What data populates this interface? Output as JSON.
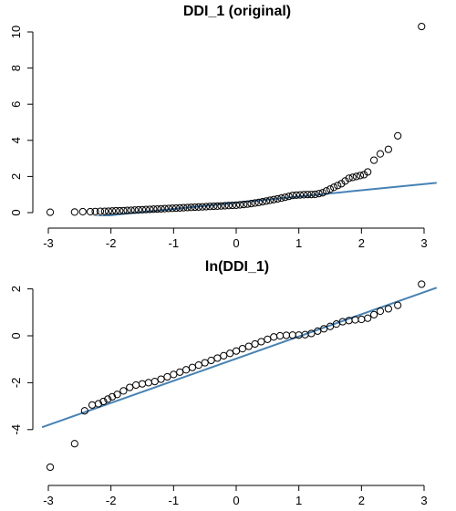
{
  "chart_data": [
    {
      "type": "scatter",
      "title": "DDI_1 (original)",
      "xlabel": "",
      "ylabel": "",
      "xlim": [
        -3.05,
        3.05
      ],
      "ylim": [
        0,
        10.5
      ],
      "x_ticks": [
        -3,
        -2,
        -1,
        0,
        1,
        2,
        3
      ],
      "y_ticks": [
        0,
        2,
        4,
        6,
        8,
        10
      ],
      "reference_line": {
        "x": [
          -2.6,
          3.2
        ],
        "y": [
          -0.35,
          1.65
        ],
        "color": "#4682B4"
      },
      "points": {
        "x": [
          -2.97,
          -2.58,
          -2.45,
          -2.33,
          -2.25,
          -2.17,
          -2.1,
          -2.04,
          -1.98,
          -1.92,
          -1.86,
          -1.8,
          -1.74,
          -1.68,
          -1.62,
          -1.56,
          -1.5,
          -1.44,
          -1.38,
          -1.32,
          -1.26,
          -1.2,
          -1.14,
          -1.08,
          -1.02,
          -0.96,
          -0.9,
          -0.84,
          -0.78,
          -0.72,
          -0.66,
          -0.6,
          -0.54,
          -0.48,
          -0.42,
          -0.36,
          -0.3,
          -0.24,
          -0.18,
          -0.12,
          -0.06,
          0.0,
          0.06,
          0.12,
          0.18,
          0.24,
          0.3,
          0.36,
          0.42,
          0.48,
          0.54,
          0.6,
          0.66,
          0.72,
          0.78,
          0.84,
          0.9,
          0.96,
          1.02,
          1.08,
          1.14,
          1.2,
          1.26,
          1.32,
          1.38,
          1.44,
          1.5,
          1.56,
          1.62,
          1.68,
          1.74,
          1.8,
          1.86,
          1.92,
          1.98,
          2.04,
          2.1,
          2.2,
          2.3,
          2.43,
          2.58,
          2.96
        ],
        "y": [
          0.02,
          0.03,
          0.05,
          0.05,
          0.06,
          0.07,
          0.07,
          0.08,
          0.09,
          0.1,
          0.1,
          0.11,
          0.12,
          0.13,
          0.14,
          0.15,
          0.16,
          0.17,
          0.18,
          0.19,
          0.2,
          0.21,
          0.22,
          0.23,
          0.24,
          0.25,
          0.26,
          0.27,
          0.28,
          0.29,
          0.3,
          0.31,
          0.32,
          0.33,
          0.34,
          0.35,
          0.36,
          0.37,
          0.38,
          0.39,
          0.4,
          0.41,
          0.43,
          0.45,
          0.47,
          0.5,
          0.53,
          0.56,
          0.6,
          0.64,
          0.68,
          0.72,
          0.76,
          0.8,
          0.85,
          0.9,
          0.95,
          0.97,
          0.98,
          0.99,
          1.0,
          1.0,
          1.01,
          1.05,
          1.1,
          1.2,
          1.3,
          1.4,
          1.5,
          1.6,
          1.75,
          1.9,
          1.95,
          2.0,
          2.05,
          2.1,
          2.25,
          2.9,
          3.25,
          3.5,
          4.25,
          10.3
        ]
      }
    },
    {
      "type": "scatter",
      "title": "ln(DDI_1)",
      "xlabel": "",
      "ylabel": "",
      "xlim": [
        -3.05,
        3.05
      ],
      "ylim": [
        -6,
        2.6
      ],
      "x_ticks": [
        -3,
        -2,
        -1,
        0,
        1,
        2,
        3
      ],
      "y_ticks": [
        -4,
        -2,
        0,
        2
      ],
      "reference_line": {
        "x": [
          -3.1,
          3.2
        ],
        "y": [
          -3.9,
          2.05
        ],
        "color": "#4682B4"
      },
      "points": {
        "x": [
          -2.97,
          -2.58,
          -2.42,
          -2.3,
          -2.2,
          -2.12,
          -2.05,
          -1.98,
          -1.9,
          -1.8,
          -1.7,
          -1.6,
          -1.5,
          -1.4,
          -1.3,
          -1.2,
          -1.1,
          -1.0,
          -0.9,
          -0.8,
          -0.7,
          -0.6,
          -0.5,
          -0.4,
          -0.3,
          -0.2,
          -0.1,
          0.0,
          0.1,
          0.2,
          0.3,
          0.4,
          0.5,
          0.6,
          0.7,
          0.8,
          0.9,
          1.0,
          1.1,
          1.2,
          1.3,
          1.4,
          1.5,
          1.6,
          1.7,
          1.8,
          1.9,
          2.0,
          2.1,
          2.2,
          2.3,
          2.43,
          2.58,
          2.96
        ],
        "y": [
          -5.6,
          -4.6,
          -3.2,
          -2.95,
          -2.9,
          -2.8,
          -2.7,
          -2.6,
          -2.5,
          -2.35,
          -2.2,
          -2.1,
          -2.05,
          -2.0,
          -1.95,
          -1.85,
          -1.75,
          -1.65,
          -1.55,
          -1.45,
          -1.35,
          -1.25,
          -1.15,
          -1.05,
          -0.95,
          -0.85,
          -0.75,
          -0.65,
          -0.55,
          -0.45,
          -0.35,
          -0.25,
          -0.15,
          -0.05,
          0.0,
          0.02,
          0.03,
          0.03,
          0.05,
          0.1,
          0.2,
          0.3,
          0.4,
          0.5,
          0.6,
          0.65,
          0.68,
          0.7,
          0.75,
          0.9,
          1.05,
          1.15,
          1.3,
          2.2
        ]
      }
    }
  ]
}
